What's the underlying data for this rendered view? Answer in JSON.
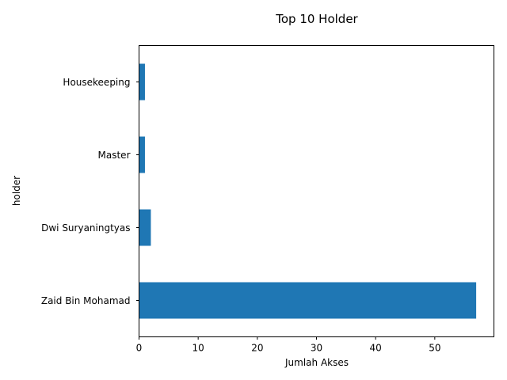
{
  "chart_data": {
    "type": "bar",
    "orientation": "horizontal",
    "title": "Top 10 Holder",
    "xlabel": "Jumlah Akses",
    "ylabel": "holder",
    "categories": [
      "Zaid Bin Mohamad",
      "Dwi Suryaningtyas",
      "Master",
      "Housekeeping"
    ],
    "values": [
      57,
      2,
      1,
      1
    ],
    "xlim": [
      0,
      60
    ],
    "xticks": [
      0,
      10,
      20,
      30,
      40,
      50
    ],
    "grid": false,
    "legend": "none",
    "bar_color": "#1f77b4"
  }
}
